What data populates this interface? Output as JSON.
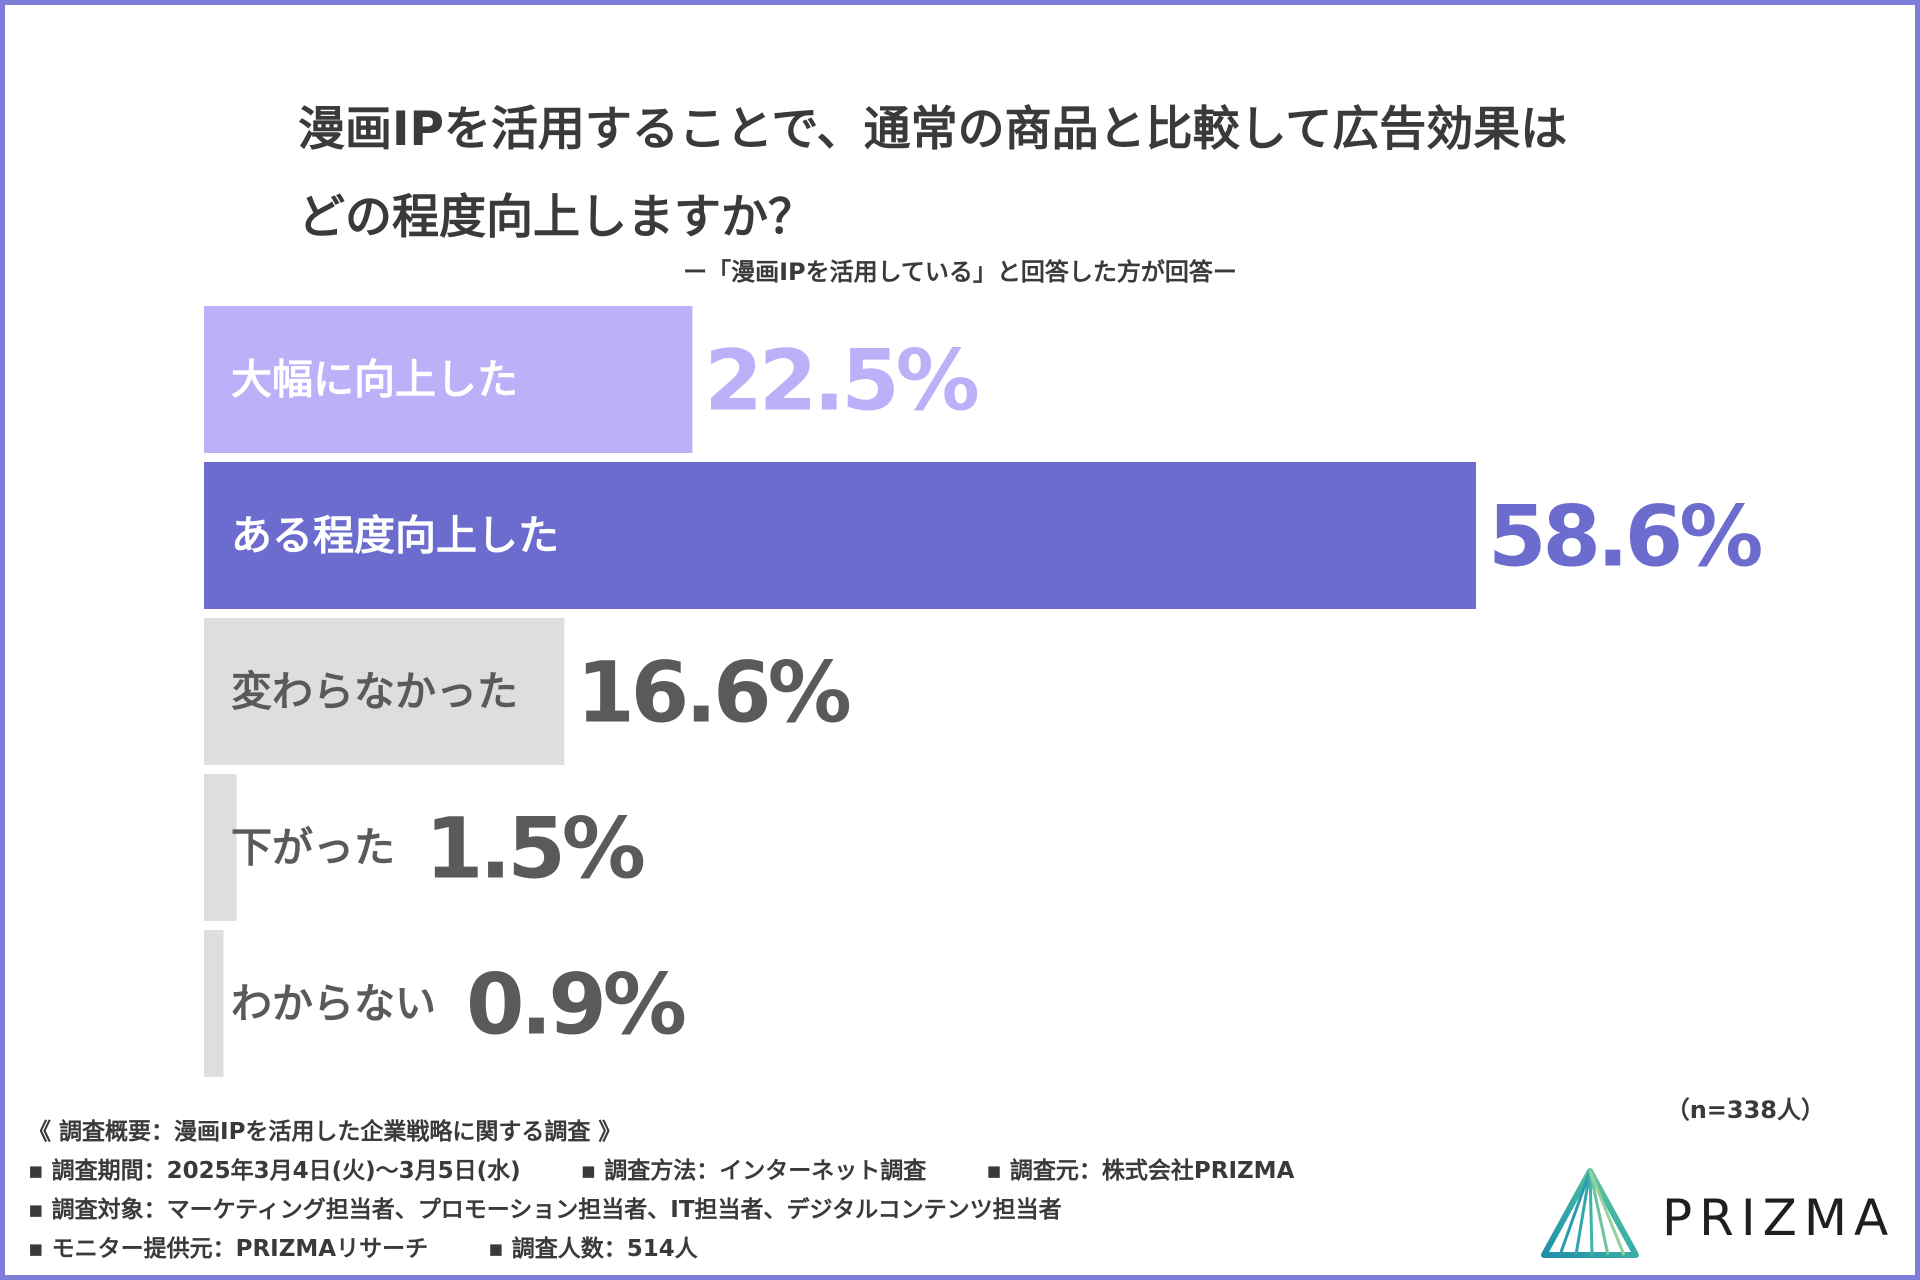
{
  "title_lines": [
    "漫画IPを活用することで、通常の商品と比較して広告効果は",
    "どの程度向上しますか？"
  ],
  "subtitle": "ー「漫画IPを活用している」と回答した方が回答ー",
  "chart_data": {
    "type": "bar",
    "orientation": "horizontal",
    "categories": [
      "大幅に向上した",
      "ある程度向上した",
      "変わらなかった",
      "下がった",
      "わからない"
    ],
    "values": [
      22.5,
      58.6,
      16.6,
      1.5,
      0.9
    ],
    "value_labels": [
      "22.5%",
      "58.6%",
      "16.6%",
      "1.5%",
      "0.9%"
    ],
    "unit": "%",
    "xlim": [
      0,
      58.6
    ],
    "colors": [
      "#bab1f9",
      "#6b6ccd",
      "#dedede",
      "#dedede",
      "#dedede"
    ],
    "label_colors": [
      "#ffffff",
      "#ffffff",
      "#5a5a5a",
      "#5a5a5a",
      "#5a5a5a"
    ],
    "value_colors": [
      "#bab1f9",
      "#6b6ccd",
      "#5a5a5a",
      "#5a5a5a",
      "#5a5a5a"
    ],
    "n_label": "（n=338人）"
  },
  "footer": {
    "heading": "《 調査概要：漫画IPを活用した企業戦略に関する調査 》",
    "period": "▪ 調査期間：2025年3月4日(火)〜3月5日(水)",
    "method": "▪ 調査方法：インターネット調査",
    "source": "▪ 調査元：株式会社PRIZMA",
    "target": "▪ 調査対象：マーケティング担当者、プロモーション担当者、IT担当者、デジタルコンテンツ担当者",
    "monitor": "▪ モニター提供元：PRIZMAリサーチ",
    "count": "▪ 調査人数：514人"
  },
  "logo": {
    "text": "PRIZMA"
  }
}
